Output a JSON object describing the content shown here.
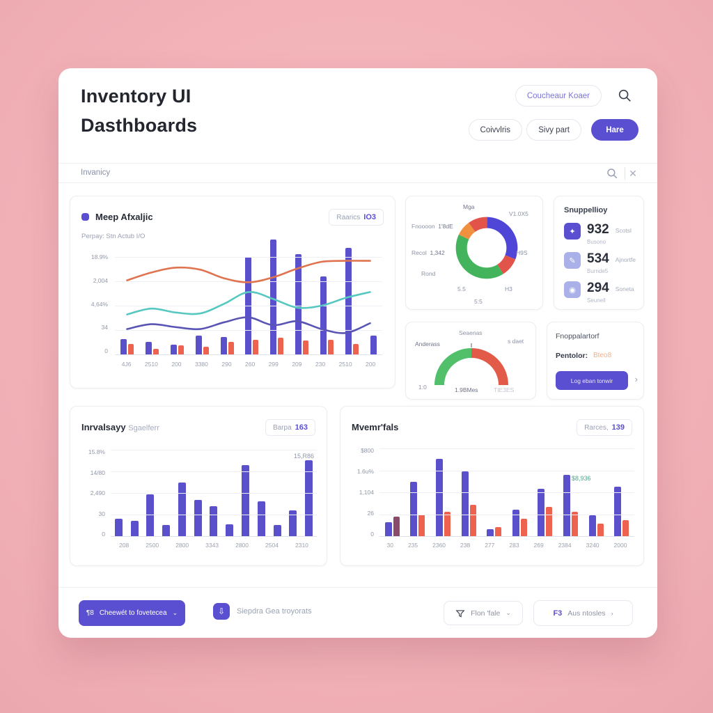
{
  "header": {
    "title_line1": "Inventory UI",
    "title_line2": "Dasthboards",
    "pill_top": "Coucheaur Koaer",
    "pill_a": "Coivvlris",
    "pill_b": "Sivy part",
    "pill_primary": "Hare"
  },
  "search": {
    "value": "Invanicy",
    "close_glyph": "✕"
  },
  "chart_data": [
    {
      "type": "combo",
      "title": "Meep Afxaljic",
      "subtitle": "Perpay: Stn Actub I/O",
      "badge": {
        "label": "Raarics",
        "value": "IO3"
      },
      "y_ticks": [
        "18.9%",
        "2,004",
        "4,64%",
        "34",
        "0"
      ],
      "categories": [
        "4J6",
        "2510",
        "200",
        "3380",
        "290",
        "260",
        "299",
        "209",
        "230",
        "2510",
        "200"
      ],
      "series": [
        {
          "name": "stock-bars",
          "kind": "bar",
          "color": "#5b50cc",
          "values": [
            16,
            13,
            10,
            19,
            18,
            100,
            118,
            103,
            80,
            109,
            19
          ]
        },
        {
          "name": "order-bars",
          "kind": "bar",
          "color": "#ee6350",
          "values": [
            11,
            6,
            9,
            8,
            13,
            15,
            17,
            14,
            15,
            11,
            0
          ]
        },
        {
          "name": "trend-orange",
          "kind": "line",
          "color": "#df7350",
          "values": [
            76,
            84,
            89,
            87,
            78,
            74,
            79,
            88,
            95,
            96,
            96
          ]
        },
        {
          "name": "trend-teal",
          "kind": "line",
          "color": "#56c8c0",
          "values": [
            41,
            47,
            43,
            42,
            52,
            64,
            57,
            48,
            50,
            58,
            64
          ]
        },
        {
          "name": "trend-indigo",
          "kind": "line",
          "color": "#5a55b4",
          "values": [
            26,
            31,
            28,
            26,
            33,
            38,
            30,
            34,
            26,
            22,
            32
          ]
        }
      ]
    },
    {
      "type": "pie",
      "labels": {
        "top": "Mga",
        "top_right": "V1.0X5",
        "left_top": "Fnoooon",
        "left_top_value": "1'8dE",
        "left_mid": "Recol",
        "left_mid_value": "1,342",
        "bottom_left": "Rond",
        "bottom_a": "5.5",
        "bottom_b": "5:5",
        "bottom_right": "H3",
        "right": "H9S"
      },
      "segments": [
        {
          "name": "blue",
          "color": "#4f46d8",
          "value": 31
        },
        {
          "name": "red",
          "color": "#e2544a",
          "value": 10
        },
        {
          "name": "green",
          "color": "#43b45c",
          "value": 41
        },
        {
          "name": "orange",
          "color": "#f0913f",
          "value": 8
        },
        {
          "name": "red2",
          "color": "#e2544a",
          "value": 10
        }
      ]
    },
    {
      "type": "gauge",
      "labels": {
        "top_left": "Anderass",
        "top_center": "Seaenas",
        "top_right": "s daet",
        "bottom_left": "1:0",
        "bottom_center": "1.9BMes",
        "bottom_right": "TIE3ES"
      },
      "segments": [
        {
          "name": "good",
          "color": "#52bf6a",
          "value": 50
        },
        {
          "name": "bad",
          "color": "#e25a48",
          "value": 50
        }
      ]
    },
    {
      "type": "bar",
      "title": "Inrvalsayy",
      "title_note": "Sgaelferr",
      "badge": {
        "label": "Barpa",
        "value": "163"
      },
      "annotation": "15,R86",
      "y_ticks": [
        "15.8%",
        "14/80",
        "2,490",
        "30",
        "0"
      ],
      "x_labels": [
        "208",
        "2500",
        "2800",
        "3343",
        "2800",
        "2504",
        "2310"
      ],
      "color": "#5b50cc",
      "values": [
        20,
        18,
        48,
        13,
        62,
        42,
        35,
        14,
        82,
        40,
        13,
        30,
        88
      ]
    },
    {
      "type": "bar",
      "title": "Mvemr'fals",
      "badge": {
        "label": "Rarces,",
        "value": "139"
      },
      "annotation": "$8,936",
      "y_ticks": [
        "$800",
        "1.6u%",
        "1,104",
        "26",
        "0"
      ],
      "categories": [
        "30",
        "235",
        "2360",
        "238",
        "277",
        "283",
        "269",
        "2384",
        "3240",
        "2000"
      ],
      "series": [
        {
          "name": "purple",
          "color": "#5b50cc",
          "values": [
            16,
            62,
            88,
            74,
            8,
            30,
            54,
            70,
            24,
            56
          ]
        },
        {
          "name": "red",
          "color": "#ee6350",
          "first_color": "#8a4a6c",
          "values": [
            22,
            25,
            28,
            36,
            10,
            20,
            33,
            28,
            14,
            18
          ]
        }
      ]
    }
  ],
  "cards": {
    "stats": {
      "title": "Snuppellioy",
      "rows": [
        {
          "value": "932",
          "side": "Scotsl",
          "sub": "Busono",
          "icon_glyph": "✦",
          "icon_bg": "#5a4fd0"
        },
        {
          "value": "534",
          "side": "Ajnortfe",
          "sub": "Burnde5",
          "icon_glyph": "✎",
          "icon_bg": "#aab1e8"
        },
        {
          "value": "294",
          "side": "Soneta",
          "sub": "Seunell",
          "icon_glyph": "◉",
          "icon_bg": "#aab1e8"
        }
      ]
    },
    "action": {
      "title": "Fnoppalartorf",
      "field_label": "Pentolor:",
      "field_value": "Bteo8",
      "button": "Log eban tonwir",
      "chevron": "›"
    }
  },
  "footer": {
    "primary_button": {
      "icon_text": "¶8",
      "label": "Cheewét to fovetecea",
      "chevron": "⌄"
    },
    "export_label": "Siepdra Gea troyorats",
    "filter_button": {
      "label": "Flon 'fale",
      "chevron": "⌄"
    },
    "pages_button": {
      "icon_text": "F3",
      "label": "Aus ntosles",
      "chevron": "›"
    }
  }
}
